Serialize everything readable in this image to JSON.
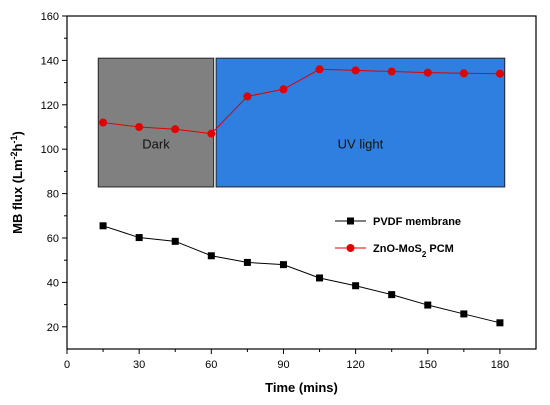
{
  "chart_data": {
    "type": "line",
    "xlabel": "Time (mins)",
    "ylabel": "MB flux (Lm-2h-1)",
    "xlim": [
      0,
      195
    ],
    "ylim": [
      10,
      160
    ],
    "x_ticks": [
      0,
      30,
      60,
      90,
      120,
      150,
      180
    ],
    "y_ticks": [
      20,
      40,
      60,
      80,
      100,
      120,
      140,
      160
    ],
    "grid": false,
    "legend_position": "right",
    "regions": [
      {
        "label": "Dark",
        "x_range": [
          13,
          61
        ],
        "y_range": [
          83,
          141
        ],
        "color": "#808080"
      },
      {
        "label": "UV light",
        "x_range": [
          62,
          182
        ],
        "y_range": [
          83,
          141
        ],
        "color": "#2f7fe0"
      }
    ],
    "series": [
      {
        "name": "PVDF membrane",
        "color": "#000000",
        "marker": "square",
        "x": [
          15,
          30,
          45,
          60,
          75,
          90,
          105,
          120,
          135,
          150,
          165,
          180
        ],
        "values": [
          65.5,
          60.2,
          58.5,
          52.0,
          49.0,
          48.0,
          42.0,
          38.5,
          34.5,
          29.8,
          25.8,
          21.8
        ]
      },
      {
        "name": "ZnO-MoS2 PCM",
        "color": "#e00000",
        "marker": "circle",
        "x": [
          15,
          30,
          45,
          60,
          75,
          90,
          105,
          120,
          135,
          150,
          165,
          180
        ],
        "values": [
          112.0,
          110.0,
          109.0,
          107.0,
          123.8,
          127.0,
          136.0,
          135.5,
          135.0,
          134.5,
          134.2,
          134.0
        ]
      }
    ]
  }
}
